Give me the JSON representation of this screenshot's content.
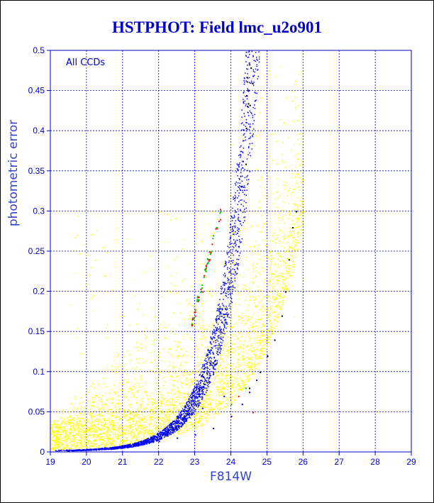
{
  "chart_data": {
    "type": "scatter",
    "title": "HSTPHOT: Field lmc_u2o901",
    "annotation": "All CCDs",
    "xlabel": "F814W",
    "ylabel": "photometric error",
    "xlim": [
      19,
      29
    ],
    "ylim": [
      0,
      0.5
    ],
    "x_ticks": [
      "19",
      "20",
      "21",
      "22",
      "23",
      "24",
      "25",
      "26",
      "27",
      "28",
      "29"
    ],
    "y_ticks": [
      "0",
      "0.05",
      "0.1",
      "0.15",
      "0.2",
      "0.25",
      "0.3",
      "0.35",
      "0.4",
      "0.45",
      "0.5"
    ],
    "grid": true,
    "series": [
      {
        "color": "#ffff00",
        "description_points": [
          [
            19.1,
            0.003
          ],
          [
            19.5,
            0.005
          ],
          [
            19.8,
            0.012
          ],
          [
            20.0,
            0.02
          ],
          [
            20.2,
            0.035
          ],
          [
            20.5,
            0.06
          ],
          [
            20.8,
            0.02
          ],
          [
            21.0,
            0.045
          ],
          [
            21.2,
            0.08
          ],
          [
            21.5,
            0.03
          ],
          [
            21.8,
            0.06
          ],
          [
            22.0,
            0.1
          ],
          [
            22.2,
            0.05
          ],
          [
            22.5,
            0.12
          ],
          [
            22.8,
            0.07
          ],
          [
            23.0,
            0.09
          ],
          [
            23.2,
            0.15
          ],
          [
            23.5,
            0.11
          ],
          [
            23.8,
            0.08
          ],
          [
            24.0,
            0.13
          ],
          [
            24.2,
            0.17
          ],
          [
            24.5,
            0.2
          ],
          [
            24.8,
            0.12
          ],
          [
            25.0,
            0.18
          ],
          [
            25.3,
            0.22
          ],
          [
            25.5,
            0.25
          ],
          [
            25.8,
            0.28
          ],
          [
            26.0,
            0.3
          ],
          [
            21.5,
            0.13
          ],
          [
            22.3,
            0.2
          ],
          [
            23.0,
            0.26
          ],
          [
            22.0,
            0.3
          ],
          [
            20.5,
            0.22
          ],
          [
            23.5,
            0.3
          ],
          [
            24.3,
            0.3
          ],
          [
            21.0,
            0.17
          ],
          [
            25.6,
            0.3
          ]
        ]
      },
      {
        "color": "#0000ff",
        "description_points": [
          [
            19.5,
            0.002
          ],
          [
            20.0,
            0.004
          ],
          [
            20.5,
            0.006
          ],
          [
            21.0,
            0.008
          ],
          [
            21.5,
            0.01
          ],
          [
            22.0,
            0.014
          ],
          [
            22.5,
            0.018
          ],
          [
            23.0,
            0.022
          ],
          [
            23.5,
            0.03
          ],
          [
            24.0,
            0.045
          ],
          [
            24.3,
            0.06
          ],
          [
            24.5,
            0.075
          ],
          [
            24.7,
            0.09
          ],
          [
            25.0,
            0.12
          ],
          [
            23.8,
            0.07
          ],
          [
            23.2,
            0.055
          ]
        ]
      },
      {
        "color": "#000000",
        "description_points": [
          [
            24.5,
            0.08
          ],
          [
            24.8,
            0.1
          ],
          [
            25.0,
            0.12
          ],
          [
            25.2,
            0.14
          ],
          [
            25.4,
            0.17
          ],
          [
            25.5,
            0.2
          ],
          [
            25.6,
            0.24
          ],
          [
            25.7,
            0.28
          ],
          [
            25.8,
            0.3
          ]
        ]
      },
      {
        "color": "#ff0000",
        "description_points": [
          [
            23.0,
            0.17
          ],
          [
            23.2,
            0.2
          ],
          [
            23.4,
            0.24
          ],
          [
            23.6,
            0.28
          ],
          [
            23.7,
            0.29
          ],
          [
            24.2,
            0.07
          ],
          [
            24.6,
            0.05
          ]
        ]
      },
      {
        "color": "#00cc00",
        "description_points": [
          [
            22.9,
            0.16
          ],
          [
            23.1,
            0.19
          ],
          [
            23.3,
            0.23
          ],
          [
            23.5,
            0.27
          ],
          [
            23.7,
            0.3
          ],
          [
            24.0,
            0.06
          ],
          [
            24.4,
            0.08
          ]
        ]
      }
    ]
  }
}
